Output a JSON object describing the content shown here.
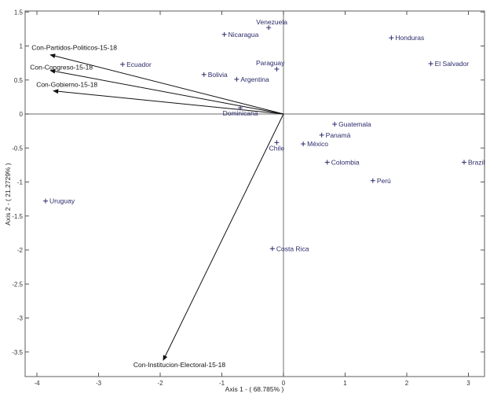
{
  "chart_data": {
    "type": "scatter",
    "subtype": "biplot",
    "title": "",
    "xlabel": "Axis 1 - ( 68.785% )",
    "ylabel": "Axis 2 - ( 21.2729% )",
    "xlim": [
      -4.2,
      3.25
    ],
    "ylim": [
      -3.85,
      1.52
    ],
    "xticks": [
      -4,
      -3,
      -2,
      -1,
      0,
      1,
      2,
      3
    ],
    "yticks": [
      1.5,
      1,
      0.5,
      0,
      -0.5,
      -1,
      -1.5,
      -2,
      -2.5,
      -3,
      -3.5
    ],
    "xtick_labels": [
      "-4",
      "-3",
      "-2",
      "-1",
      "0",
      "1",
      "2",
      "3"
    ],
    "ytick_labels": [
      "1.5",
      "1",
      "0.5",
      "0",
      "-0.5",
      "-1",
      "-1.5",
      "-2",
      "-2.5",
      "-3",
      "-3.5"
    ],
    "grid": false,
    "zero_lines": true,
    "point_color": "#2a2a6a",
    "vector_color": "#111111",
    "points": [
      {
        "label": "Venezuela",
        "x": -0.24,
        "y": 1.27,
        "label_pos": "above"
      },
      {
        "label": "Nicaragua",
        "x": -0.96,
        "y": 1.17,
        "label_pos": "right"
      },
      {
        "label": "Honduras",
        "x": 1.75,
        "y": 1.12,
        "label_pos": "right"
      },
      {
        "label": "El Salvador",
        "x": 2.39,
        "y": 0.74,
        "label_pos": "right"
      },
      {
        "label": "Ecuador",
        "x": -2.61,
        "y": 0.73,
        "label_pos": "right"
      },
      {
        "label": "Paraguay",
        "x": -0.11,
        "y": 0.66,
        "label_pos": "above-left"
      },
      {
        "label": "Bolivia",
        "x": -1.29,
        "y": 0.58,
        "label_pos": "right"
      },
      {
        "label": "Argentina",
        "x": -0.76,
        "y": 0.51,
        "label_pos": "right"
      },
      {
        "label": "Dominicana",
        "x": -0.7,
        "y": 0.09,
        "label_pos": "below"
      },
      {
        "label": "Guatemala",
        "x": 0.83,
        "y": -0.15,
        "label_pos": "right"
      },
      {
        "label": "Panamá",
        "x": 0.62,
        "y": -0.31,
        "label_pos": "right"
      },
      {
        "label": "México",
        "x": 0.32,
        "y": -0.44,
        "label_pos": "right"
      },
      {
        "label": "Chile",
        "x": -0.11,
        "y": -0.42,
        "label_pos": "below"
      },
      {
        "label": "Colombia",
        "x": 0.71,
        "y": -0.71,
        "label_pos": "right"
      },
      {
        "label": "Brazil",
        "x": 2.93,
        "y": -0.71,
        "label_pos": "right"
      },
      {
        "label": "Perú",
        "x": 1.45,
        "y": -0.98,
        "label_pos": "right"
      },
      {
        "label": "Uruguay",
        "x": -3.86,
        "y": -1.28,
        "label_pos": "right"
      },
      {
        "label": "Costa Rica",
        "x": -0.18,
        "y": -1.98,
        "label_pos": "right"
      }
    ],
    "vectors": [
      {
        "label": "Con-Partidos-Politicos-15-18",
        "x": -3.78,
        "y": 0.87
      },
      {
        "label": "Con-Congreso-15-18",
        "x": -3.78,
        "y": 0.64
      },
      {
        "label": "Con-Gobierno-15-18",
        "x": -3.73,
        "y": 0.34
      },
      {
        "label": "Con-Institucion-Electoral-15-18",
        "x": -1.95,
        "y": -3.62
      }
    ]
  }
}
